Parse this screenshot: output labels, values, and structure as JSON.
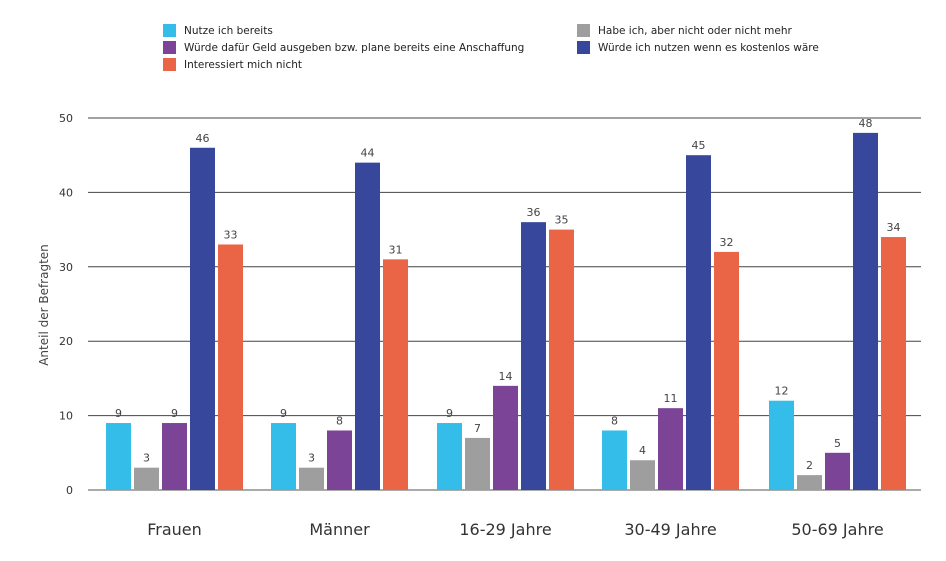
{
  "chart_data": {
    "type": "bar",
    "categories": [
      "Frauen",
      "Männer",
      "16-29 Jahre",
      "30-49 Jahre",
      "50-69 Jahre"
    ],
    "series": [
      {
        "name": "Nutze ich bereits",
        "color": "#33bde8",
        "values": [
          9,
          9,
          9,
          8,
          12
        ]
      },
      {
        "name": "Habe ich, aber nicht oder nicht mehr",
        "color": "#9e9e9e",
        "values": [
          3,
          3,
          7,
          4,
          2
        ]
      },
      {
        "name": "Würde dafür Geld ausgeben bzw. plane bereits eine Anschaffung",
        "color": "#7b4497",
        "values": [
          9,
          8,
          14,
          11,
          5
        ]
      },
      {
        "name": "Würde ich nutzen wenn es kostenlos wäre",
        "color": "#37479b",
        "values": [
          46,
          44,
          36,
          45,
          48
        ]
      },
      {
        "name": "Interessiert mich nicht",
        "color": "#ea6546",
        "values": [
          33,
          31,
          35,
          32,
          34
        ]
      }
    ],
    "ylabel": "Anteil der Befragten",
    "ylim": [
      0,
      50
    ],
    "yticks": [
      0,
      10,
      20,
      30,
      40,
      50
    ],
    "grid": true,
    "legend_position": "top"
  }
}
